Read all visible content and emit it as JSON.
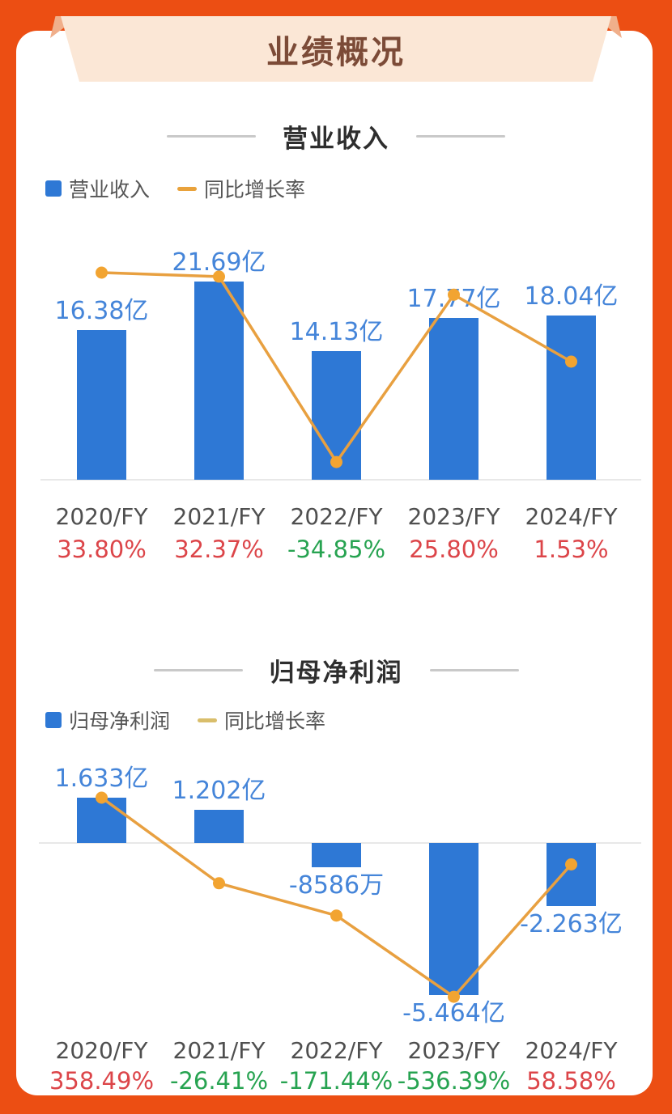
{
  "banner": {
    "title": "业绩概况"
  },
  "colors": {
    "background": "#EC4E13",
    "card": "#FFFFFF",
    "banner_bg": "#FBE7D6",
    "banner_fold": "#F0AF8B",
    "banner_title": "#7C4B37",
    "bar": "#2E78D5",
    "line": "#E8A040",
    "dot": "#F2A431",
    "value_label": "#4585D9",
    "axis_label": "#4F4F4F",
    "positive_pct": "#DC4549",
    "negative_pct": "#27A351",
    "section_title": "#2E2E2E",
    "legend_text": "#555555",
    "legend_dash_chart1": "#E9A23B",
    "legend_dash_chart2": "#D9BE6B",
    "baseline": "#E8E8E8"
  },
  "charts": [
    {
      "section_title": "营业收入",
      "legend": {
        "bar_label": "营业收入",
        "line_label": "同比增长率"
      },
      "chart_data": {
        "type": "bar+line",
        "categories": [
          "2020/FY",
          "2021/FY",
          "2022/FY",
          "2023/FY",
          "2024/FY"
        ],
        "series": [
          {
            "name": "营业收入",
            "type": "bar",
            "unit": "亿",
            "values": [
              16.38,
              21.69,
              14.13,
              17.77,
              18.04
            ],
            "labels": [
              "16.38亿",
              "21.69亿",
              "14.13亿",
              "17.77亿",
              "18.04亿"
            ]
          },
          {
            "name": "同比增长率",
            "type": "line",
            "unit": "%",
            "values": [
              33.8,
              32.37,
              -34.85,
              25.8,
              1.53
            ],
            "labels": [
              "33.80%",
              "32.37%",
              "-34.85%",
              "25.80%",
              "1.53%"
            ]
          }
        ],
        "grid": false,
        "legend_position": "top-left",
        "value_label_color_rule": "positive=red, negative=green"
      }
    },
    {
      "section_title": "归母净利润",
      "legend": {
        "bar_label": "归母净利润",
        "line_label": "同比增长率"
      },
      "chart_data": {
        "type": "bar+line",
        "categories": [
          "2020/FY",
          "2021/FY",
          "2022/FY",
          "2023/FY",
          "2024/FY"
        ],
        "series": [
          {
            "name": "归母净利润",
            "type": "bar",
            "unit": "亿",
            "values": [
              1.633,
              1.202,
              -0.8586,
              -5.464,
              -2.263
            ],
            "labels": [
              "1.633亿",
              "1.202亿",
              "-8586万",
              "-5.464亿",
              "-2.263亿"
            ]
          },
          {
            "name": "同比增长率",
            "type": "line",
            "unit": "%",
            "values": [
              358.49,
              -26.41,
              -171.44,
              -536.39,
              58.58
            ],
            "labels": [
              "358.49%",
              "-26.41%",
              "-171.44%",
              "-536.39%",
              "58.58%"
            ]
          }
        ],
        "grid": false,
        "legend_position": "top-left",
        "value_label_color_rule": "positive=red, negative=green"
      }
    }
  ]
}
